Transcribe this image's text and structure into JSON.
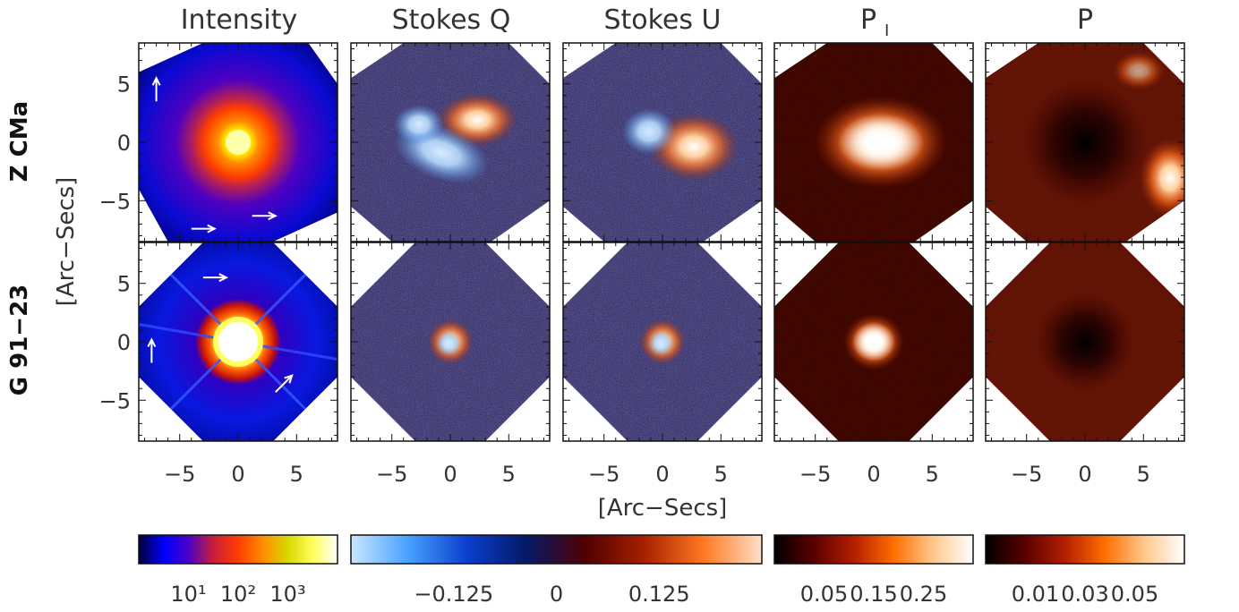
{
  "chart_data": {
    "type": "image-grid",
    "columns": [
      {
        "title": "Intensity",
        "colormap": "intensity",
        "cbar_ticks": [
          "10¹",
          "10²",
          "10³"
        ]
      },
      {
        "title": "Stokes Q",
        "colormap": "diverging"
      },
      {
        "title": "Stokes U",
        "colormap": "diverging"
      },
      {
        "title": "P",
        "title_sub": "I",
        "colormap": "heat",
        "cbar_ticks": [
          "0.05",
          "0.15",
          "0.25"
        ]
      },
      {
        "title": "P",
        "colormap": "heat",
        "cbar_ticks": [
          "0.01",
          "0.03",
          "0.05"
        ]
      }
    ],
    "shared_cbar_ticks": [
      "−0.125",
      "0",
      "0.125"
    ],
    "rows": [
      {
        "label": "Z CMa"
      },
      {
        "label": "G 91−23"
      }
    ],
    "x_ticks": [
      "−5",
      "0",
      "5"
    ],
    "y_ticks": [
      "5",
      "0",
      "−5"
    ],
    "x_tick_values": [
      -5,
      0,
      5
    ],
    "y_tick_values": [
      5,
      0,
      -5
    ],
    "xlim": [
      -8.5,
      8.5
    ],
    "ylim": [
      -8.5,
      8.5
    ],
    "xlabel": "[Arc−Secs]",
    "ylabel": "[Arc−Secs]"
  },
  "colors": {
    "intensity": [
      "#000033",
      "#0000ff",
      "#4b00c8",
      "#c81e3c",
      "#ff3c00",
      "#ff8c00",
      "#d8d800",
      "#ffff5a",
      "#ffffff"
    ],
    "diverging": [
      "#c8e6ff",
      "#46a0ff",
      "#0a3ccc",
      "#051a66",
      "#500000",
      "#a82000",
      "#ff7820",
      "#ffe0c8"
    ],
    "heat": [
      "#000000",
      "#5a0000",
      "#b41e00",
      "#ff6e00",
      "#ffc88c",
      "#ffffff"
    ],
    "arrow": "#ffffff"
  }
}
